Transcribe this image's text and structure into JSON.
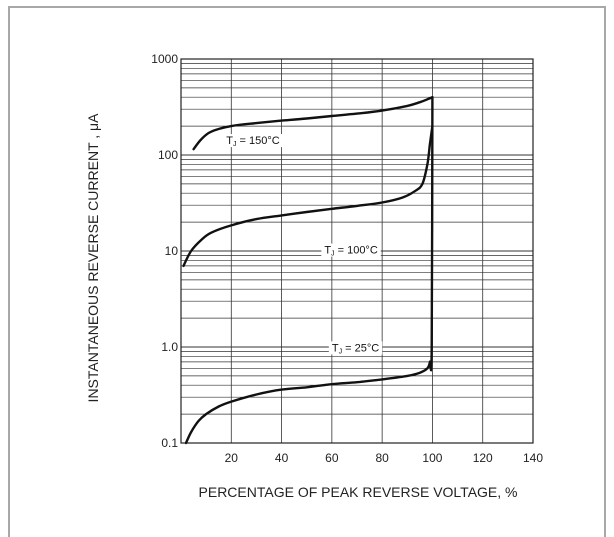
{
  "chart_data": {
    "type": "line",
    "title": "",
    "xlabel": "PERCENTAGE OF PEAK REVERSE VOLTAGE, %",
    "ylabel": "INSTANTANEOUS REVERSE CURRENT , μA",
    "xlim": [
      0,
      140
    ],
    "ylim": [
      0.1,
      1000
    ],
    "yscale": "log",
    "x_ticks": [
      "20",
      "40",
      "60",
      "80",
      "100",
      "120",
      "140"
    ],
    "y_ticks": [
      "0.1",
      "1.0",
      "10",
      "100",
      "1000"
    ],
    "grid": true,
    "series": [
      {
        "name": "T_J = 150°C",
        "x": [
          5,
          8,
          12,
          20,
          30,
          40,
          50,
          60,
          70,
          80,
          90,
          95,
          98,
          100
        ],
        "y": [
          115,
          145,
          175,
          200,
          215,
          228,
          240,
          255,
          270,
          290,
          325,
          355,
          380,
          400
        ]
      },
      {
        "name": "T_J = 100°C",
        "x": [
          1,
          4,
          8,
          12,
          20,
          30,
          40,
          50,
          60,
          70,
          80,
          88,
          93,
          96,
          98,
          99,
          100
        ],
        "y": [
          7,
          10,
          13,
          15.5,
          18.5,
          21.5,
          23.5,
          25.5,
          27.5,
          29.5,
          32,
          36,
          42,
          50,
          80,
          130,
          200
        ]
      },
      {
        "name": "T_J = 25°C",
        "x": [
          2,
          4,
          7,
          10,
          15,
          20,
          30,
          40,
          50,
          60,
          70,
          80,
          90,
          95,
          98,
          99,
          99.7,
          100
        ],
        "y": [
          0.1,
          0.13,
          0.17,
          0.2,
          0.24,
          0.27,
          0.32,
          0.36,
          0.38,
          0.41,
          0.43,
          0.46,
          0.5,
          0.54,
          0.6,
          0.7,
          1.0,
          400
        ]
      }
    ],
    "annotations": [
      {
        "label": "T_J = 150°C",
        "x": 18,
        "y": 130
      },
      {
        "label": "T_J = 100°C",
        "x": 57,
        "y": 9.4
      },
      {
        "label": "T_J = 25°C",
        "x": 60,
        "y": 0.9
      }
    ]
  }
}
